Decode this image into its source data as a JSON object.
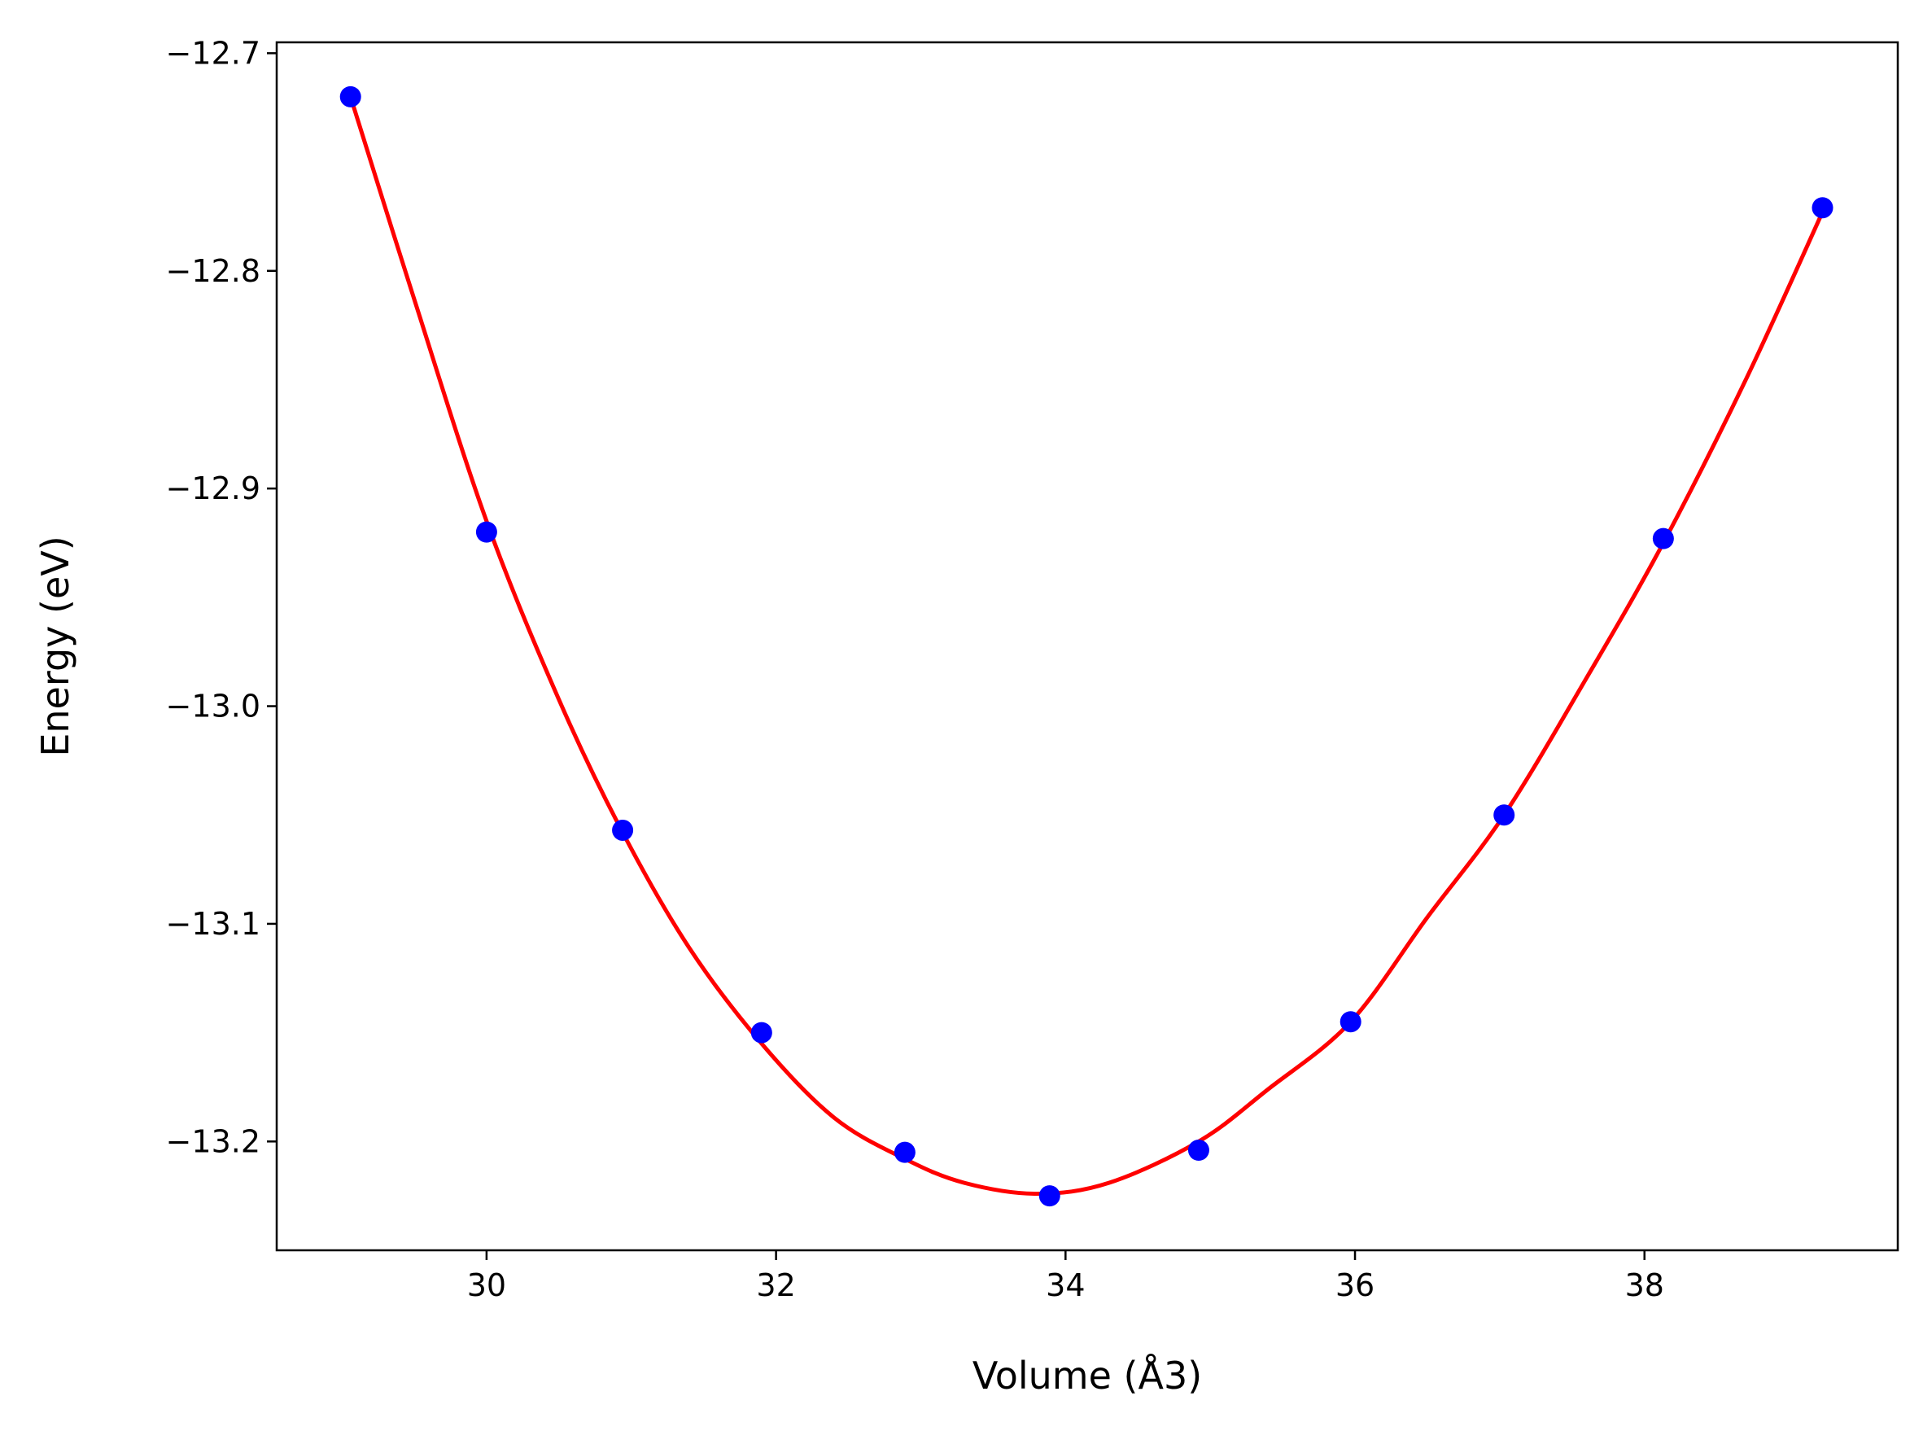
{
  "chart_data": {
    "type": "line",
    "xlabel": "Volume (Å3)",
    "ylabel": "Energy (eV)",
    "xlim": [
      28.55,
      39.75
    ],
    "ylim": [
      -13.25,
      -12.695
    ],
    "grid": false,
    "x_ticks": [
      30,
      32,
      34,
      36,
      38
    ],
    "x_tick_labels": [
      "30",
      "32",
      "34",
      "36",
      "38"
    ],
    "y_ticks": [
      -12.7,
      -12.8,
      -12.9,
      -13.0,
      -13.1,
      -13.2
    ],
    "y_tick_labels": [
      "−12.7",
      "−12.8",
      "−12.9",
      "−13.0",
      "−13.1",
      "−13.2"
    ],
    "series": [
      {
        "kind": "points",
        "color": "#0000ff",
        "x": [
          29.06,
          30.0,
          30.94,
          31.9,
          32.89,
          33.89,
          34.92,
          35.97,
          37.03,
          38.13,
          39.23
        ],
        "y": [
          -12.72,
          -12.92,
          -13.057,
          -13.15,
          -13.205,
          -13.225,
          -13.204,
          -13.145,
          -13.05,
          -12.923,
          -12.771
        ]
      },
      {
        "kind": "fit",
        "color": "#ff0000",
        "x": [
          29.06,
          29.5,
          30.0,
          30.5,
          30.94,
          31.4,
          31.9,
          32.4,
          32.89,
          33.3,
          33.8,
          34.3,
          34.92,
          35.4,
          35.97,
          36.5,
          37.03,
          37.6,
          38.13,
          38.7,
          39.23
        ],
        "y": [
          -12.72,
          -12.813,
          -12.915,
          -12.997,
          -13.058,
          -13.111,
          -13.155,
          -13.189,
          -13.208,
          -13.219,
          -13.224,
          -13.219,
          -13.2,
          -13.176,
          -13.145,
          -13.097,
          -13.05,
          -12.987,
          -12.925,
          -12.85,
          -12.773
        ]
      }
    ]
  }
}
